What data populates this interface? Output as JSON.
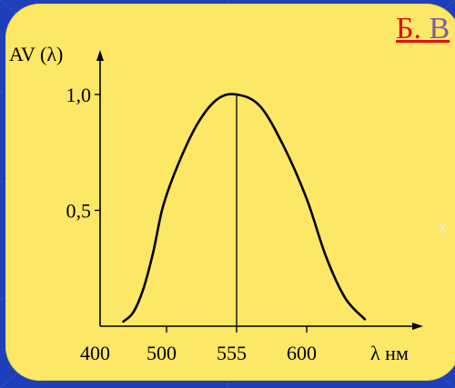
{
  "slide": {
    "heading_letter": "Б.",
    "heading_rest": "В",
    "side_letter": "х"
  },
  "colors": {
    "background": "#1f3fb8",
    "card": "#fde766",
    "heading": "#e01010",
    "ink": "#000000"
  },
  "chart_data": {
    "type": "line",
    "ylabel": "AV (λ)",
    "xlabel": "λ нм",
    "x_ticks": [
      "400",
      "500",
      "555",
      "600"
    ],
    "y_ticks": [
      "1,0",
      "0,5"
    ],
    "xlim": [
      400,
      650
    ],
    "ylim": [
      0,
      1.0
    ],
    "peak": {
      "x": 555,
      "y": 1.0
    },
    "series": [
      {
        "x": [
          435,
          450,
          465,
          480,
          495,
          510,
          525,
          540,
          555,
          570,
          585,
          600,
          615,
          630,
          645
        ],
        "y": [
          0.02,
          0.06,
          0.16,
          0.32,
          0.52,
          0.71,
          0.88,
          0.98,
          1.0,
          0.95,
          0.78,
          0.55,
          0.3,
          0.12,
          0.03
        ]
      }
    ]
  }
}
